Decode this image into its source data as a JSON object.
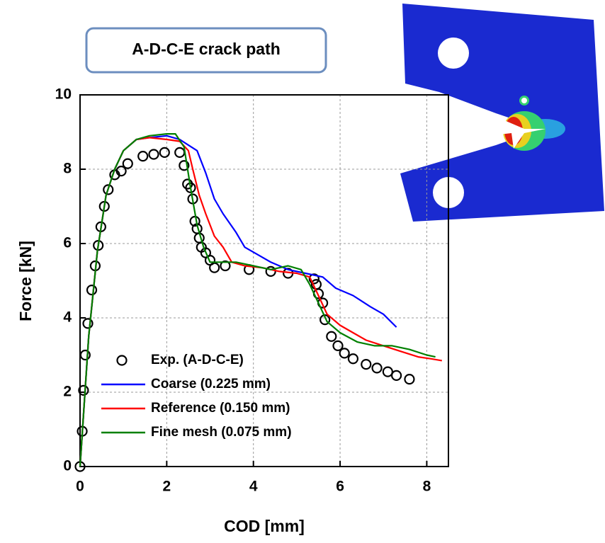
{
  "chart_data": {
    "type": "line",
    "annotation": "A-D-C-E crack path",
    "x_label": "COD [mm]",
    "y_label": "Force [kN]",
    "xlim": [
      0,
      8.5
    ],
    "ylim": [
      0,
      10
    ],
    "xticks": [
      0,
      2,
      4,
      6,
      8
    ],
    "yticks": [
      0,
      2,
      4,
      6,
      8,
      10
    ],
    "grid": true,
    "legend": "lower left",
    "series": [
      {
        "name": "Exp. (A-D-C-E)",
        "type": "scatter",
        "color": "#000000",
        "x": [
          0,
          0.05,
          0.08,
          0.12,
          0.18,
          0.27,
          0.35,
          0.42,
          0.48,
          0.56,
          0.65,
          0.8,
          0.95,
          1.1,
          1.45,
          1.7,
          1.95,
          2.3,
          2.4,
          2.48,
          2.55,
          2.6,
          2.65,
          2.7,
          2.75,
          2.8,
          2.9,
          3.0,
          3.1,
          3.35,
          3.9,
          4.4,
          4.8,
          5.4,
          5.45,
          5.5,
          5.6,
          5.65,
          5.8,
          5.95,
          6.1,
          6.3,
          6.6,
          6.85,
          7.1,
          7.3,
          7.6
        ],
        "values": [
          0,
          0.95,
          2.05,
          3.0,
          3.85,
          4.75,
          5.4,
          5.95,
          6.45,
          7.0,
          7.45,
          7.85,
          7.95,
          8.15,
          8.35,
          8.4,
          8.45,
          8.45,
          8.1,
          7.6,
          7.5,
          7.2,
          6.6,
          6.4,
          6.15,
          5.9,
          5.75,
          5.55,
          5.35,
          5.4,
          5.3,
          5.25,
          5.2,
          5.05,
          4.9,
          4.65,
          4.4,
          3.95,
          3.5,
          3.25,
          3.05,
          2.9,
          2.75,
          2.65,
          2.55,
          2.45,
          2.35
        ]
      },
      {
        "name": "Coarse (0.225 mm)",
        "type": "line",
        "color": "#0000ff",
        "x": [
          0,
          0.2,
          0.4,
          0.6,
          0.8,
          1.0,
          1.3,
          1.6,
          2.0,
          2.3,
          2.5,
          2.7,
          2.9,
          3.1,
          3.3,
          3.6,
          3.8,
          4.1,
          4.4,
          4.8,
          5.2,
          5.6,
          5.9,
          6.3,
          6.7,
          7.0,
          7.3
        ],
        "values": [
          0,
          3.5,
          5.8,
          7.3,
          8.0,
          8.5,
          8.8,
          8.85,
          8.9,
          8.8,
          8.65,
          8.5,
          7.9,
          7.2,
          6.8,
          6.3,
          5.9,
          5.7,
          5.5,
          5.3,
          5.2,
          5.1,
          4.8,
          4.6,
          4.3,
          4.1,
          3.75
        ]
      },
      {
        "name": "Reference (0.150 mm)",
        "type": "line",
        "color": "#ff0000",
        "x": [
          0,
          0.2,
          0.4,
          0.6,
          0.8,
          1.0,
          1.3,
          1.6,
          2.0,
          2.3,
          2.5,
          2.6,
          2.75,
          2.9,
          3.1,
          3.3,
          3.5,
          3.8,
          4.2,
          4.6,
          5.0,
          5.3,
          5.5,
          5.7,
          6.0,
          6.3,
          6.6,
          7.0,
          7.4,
          7.8,
          8.1,
          8.35
        ],
        "values": [
          0,
          3.5,
          5.8,
          7.3,
          8.0,
          8.5,
          8.8,
          8.85,
          8.8,
          8.75,
          8.5,
          8.0,
          7.3,
          6.8,
          6.2,
          5.9,
          5.5,
          5.4,
          5.35,
          5.25,
          5.2,
          5.1,
          4.6,
          4.1,
          3.8,
          3.6,
          3.4,
          3.25,
          3.1,
          2.95,
          2.9,
          2.85
        ]
      },
      {
        "name": "Fine mesh (0.075 mm)",
        "type": "line",
        "color": "#008000",
        "x": [
          0,
          0.2,
          0.4,
          0.6,
          0.8,
          1.0,
          1.3,
          1.6,
          2.0,
          2.2,
          2.4,
          2.55,
          2.7,
          2.85,
          3.0,
          3.3,
          3.6,
          4.0,
          4.4,
          4.8,
          5.1,
          5.3,
          5.5,
          5.7,
          6.0,
          6.4,
          6.8,
          7.2,
          7.6,
          8.0,
          8.2
        ],
        "values": [
          0,
          3.5,
          5.8,
          7.3,
          8.0,
          8.5,
          8.8,
          8.9,
          8.95,
          8.95,
          8.6,
          7.5,
          6.5,
          5.9,
          5.5,
          5.5,
          5.5,
          5.4,
          5.3,
          5.4,
          5.3,
          4.9,
          4.4,
          3.9,
          3.6,
          3.35,
          3.25,
          3.25,
          3.15,
          3.0,
          2.95
        ]
      }
    ]
  }
}
